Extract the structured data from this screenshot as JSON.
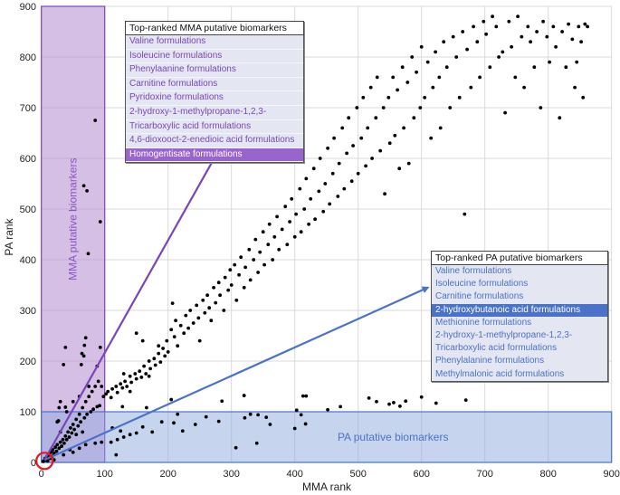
{
  "chart_data": {
    "type": "scatter",
    "xlabel": "MMA rank",
    "ylabel": "PA rank",
    "xlim": [
      0,
      900
    ],
    "ylim": [
      0,
      900
    ],
    "xticks": [
      "0",
      "100",
      "200",
      "300",
      "400",
      "500",
      "600",
      "700",
      "800",
      "900"
    ],
    "yticks": [
      "0",
      "100",
      "200",
      "300",
      "400",
      "500",
      "600",
      "700",
      "800",
      "900"
    ],
    "grid": true,
    "colors": {
      "points": "#000000",
      "mma": "#7b45b8",
      "mma_fill": "#d6bfe6",
      "pa": "#4a72c8",
      "pa_fill": "#c5d3ec",
      "highlight_circle": "#e8161b"
    },
    "regions": [
      {
        "label": "MMA putative biomarkers",
        "x": [
          0,
          100
        ],
        "y": [
          0,
          900
        ]
      },
      {
        "label": "PA putative biomarkers",
        "x": [
          0,
          900
        ],
        "y": [
          0,
          100
        ]
      }
    ],
    "arrows": [
      {
        "color": "mma",
        "from": [
          5,
          5
        ],
        "to": [
          275,
          605
        ]
      },
      {
        "color": "pa",
        "from": [
          5,
          5
        ],
        "to": [
          610,
          345
        ]
      }
    ],
    "highlight_circle_at": [
      5,
      3
    ],
    "points": [
      [
        102,
        135
      ],
      [
        105,
        140
      ],
      [
        110,
        128
      ],
      [
        112,
        145
      ],
      [
        118,
        150
      ],
      [
        120,
        138
      ],
      [
        125,
        155
      ],
      [
        128,
        147
      ],
      [
        132,
        160
      ],
      [
        135,
        150
      ],
      [
        140,
        170
      ],
      [
        142,
        158
      ],
      [
        148,
        175
      ],
      [
        150,
        165
      ],
      [
        155,
        180
      ],
      [
        158,
        168
      ],
      [
        162,
        190
      ],
      [
        165,
        175
      ],
      [
        170,
        200
      ],
      [
        172,
        185
      ],
      [
        178,
        205
      ],
      [
        180,
        192
      ],
      [
        185,
        215
      ],
      [
        188,
        198
      ],
      [
        192,
        225
      ],
      [
        195,
        210
      ],
      [
        198,
        240
      ],
      [
        200,
        218
      ],
      [
        150,
        255
      ],
      [
        160,
        240
      ],
      [
        170,
        170
      ],
      [
        140,
        140
      ],
      [
        185,
        230
      ],
      [
        130,
        175
      ],
      [
        205,
        262
      ],
      [
        210,
        248
      ],
      [
        212,
        280
      ],
      [
        215,
        230
      ],
      [
        220,
        270
      ],
      [
        225,
        255
      ],
      [
        228,
        290
      ],
      [
        232,
        265
      ],
      [
        235,
        300
      ],
      [
        240,
        275
      ],
      [
        245,
        310
      ],
      [
        248,
        285
      ],
      [
        250,
        240
      ],
      [
        255,
        320
      ],
      [
        258,
        295
      ],
      [
        262,
        330
      ],
      [
        265,
        305
      ],
      [
        268,
        280
      ],
      [
        272,
        345
      ],
      [
        275,
        315
      ],
      [
        280,
        355
      ],
      [
        282,
        330
      ],
      [
        288,
        300
      ],
      [
        290,
        365
      ],
      [
        295,
        340
      ],
      [
        298,
        380
      ],
      [
        300,
        350
      ],
      [
        305,
        390
      ],
      [
        308,
        320
      ],
      [
        312,
        370
      ],
      [
        315,
        405
      ],
      [
        320,
        345
      ],
      [
        322,
        385
      ],
      [
        328,
        420
      ],
      [
        330,
        360
      ],
      [
        335,
        400
      ],
      [
        338,
        440
      ],
      [
        342,
        375
      ],
      [
        345,
        415
      ],
      [
        350,
        455
      ],
      [
        352,
        390
      ],
      [
        358,
        430
      ],
      [
        360,
        470
      ],
      [
        365,
        400
      ],
      [
        368,
        445
      ],
      [
        372,
        485
      ],
      [
        375,
        420
      ],
      [
        380,
        460
      ],
      [
        385,
        505
      ],
      [
        388,
        430
      ],
      [
        392,
        475
      ],
      [
        395,
        520
      ],
      [
        400,
        445
      ],
      [
        402,
        490
      ],
      [
        408,
        540
      ],
      [
        410,
        455
      ],
      [
        415,
        500
      ],
      [
        418,
        560
      ],
      [
        422,
        470
      ],
      [
        425,
        520
      ],
      [
        430,
        580
      ],
      [
        432,
        480
      ],
      [
        438,
        535
      ],
      [
        440,
        600
      ],
      [
        445,
        495
      ],
      [
        448,
        550
      ],
      [
        452,
        620
      ],
      [
        455,
        510
      ],
      [
        460,
        570
      ],
      [
        462,
        640
      ],
      [
        468,
        525
      ],
      [
        470,
        590
      ],
      [
        475,
        660
      ],
      [
        478,
        540
      ],
      [
        482,
        610
      ],
      [
        485,
        680
      ],
      [
        490,
        555
      ],
      [
        492,
        625
      ],
      [
        498,
        700
      ],
      [
        500,
        570
      ],
      [
        505,
        640
      ],
      [
        508,
        720
      ],
      [
        512,
        585
      ],
      [
        515,
        660
      ],
      [
        520,
        740
      ],
      [
        522,
        600
      ],
      [
        528,
        680
      ],
      [
        530,
        760
      ],
      [
        535,
        615
      ],
      [
        540,
        700
      ],
      [
        542,
        530
      ],
      [
        548,
        720
      ],
      [
        550,
        630
      ],
      [
        555,
        760
      ],
      [
        558,
        645
      ],
      [
        562,
        735
      ],
      [
        565,
        580
      ],
      [
        570,
        780
      ],
      [
        572,
        660
      ],
      [
        578,
        750
      ],
      [
        580,
        590
      ],
      [
        585,
        800
      ],
      [
        588,
        680
      ],
      [
        592,
        770
      ],
      [
        598,
        700
      ],
      [
        600,
        820
      ],
      [
        605,
        720
      ],
      [
        610,
        790
      ],
      [
        615,
        640
      ],
      [
        618,
        740
      ],
      [
        622,
        810
      ],
      [
        628,
        760
      ],
      [
        630,
        660
      ],
      [
        635,
        830
      ],
      [
        640,
        780
      ],
      [
        645,
        700
      ],
      [
        650,
        840
      ],
      [
        655,
        800
      ],
      [
        660,
        720
      ],
      [
        665,
        850
      ],
      [
        668,
        490
      ],
      [
        672,
        815
      ],
      [
        678,
        740
      ],
      [
        682,
        860
      ],
      [
        688,
        830
      ],
      [
        692,
        760
      ],
      [
        698,
        870
      ],
      [
        702,
        845
      ],
      [
        708,
        780
      ],
      [
        712,
        880
      ],
      [
        718,
        860
      ],
      [
        722,
        800
      ],
      [
        728,
        810
      ],
      [
        732,
        690
      ],
      [
        738,
        870
      ],
      [
        742,
        820
      ],
      [
        748,
        760
      ],
      [
        752,
        880
      ],
      [
        758,
        840
      ],
      [
        762,
        740
      ],
      [
        768,
        860
      ],
      [
        772,
        830
      ],
      [
        778,
        780
      ],
      [
        782,
        850
      ],
      [
        788,
        700
      ],
      [
        792,
        870
      ],
      [
        798,
        840
      ],
      [
        802,
        790
      ],
      [
        808,
        860
      ],
      [
        812,
        820
      ],
      [
        818,
        680
      ],
      [
        822,
        850
      ],
      [
        828,
        780
      ],
      [
        832,
        865
      ],
      [
        838,
        835
      ],
      [
        842,
        740
      ],
      [
        848,
        860
      ],
      [
        852,
        830
      ],
      [
        858,
        865
      ],
      [
        862,
        860
      ],
      [
        855,
        720
      ],
      [
        845,
        790
      ],
      [
        3,
        2
      ],
      [
        5,
        4
      ],
      [
        6,
        8
      ],
      [
        8,
        5
      ],
      [
        9,
        12
      ],
      [
        10,
        3
      ],
      [
        12,
        15
      ],
      [
        14,
        8
      ],
      [
        15,
        20
      ],
      [
        17,
        12
      ],
      [
        18,
        25
      ],
      [
        20,
        18
      ],
      [
        22,
        30
      ],
      [
        24,
        22
      ],
      [
        25,
        35
      ],
      [
        28,
        28
      ],
      [
        30,
        40
      ],
      [
        32,
        32
      ],
      [
        34,
        45
      ],
      [
        36,
        38
      ],
      [
        38,
        52
      ],
      [
        40,
        45
      ],
      [
        42,
        60
      ],
      [
        44,
        50
      ],
      [
        46,
        68
      ],
      [
        48,
        58
      ],
      [
        50,
        75
      ],
      [
        52,
        65
      ],
      [
        55,
        85
      ],
      [
        58,
        72
      ],
      [
        60,
        95
      ],
      [
        62,
        80
      ],
      [
        65,
        108
      ],
      [
        68,
        88
      ],
      [
        70,
        120
      ],
      [
        72,
        95
      ],
      [
        75,
        130
      ],
      [
        78,
        100
      ],
      [
        80,
        140
      ],
      [
        82,
        105
      ],
      [
        85,
        150
      ],
      [
        88,
        110
      ],
      [
        90,
        160
      ],
      [
        92,
        112
      ],
      [
        95,
        150
      ],
      [
        98,
        130
      ],
      [
        50,
        20
      ],
      [
        60,
        28
      ],
      [
        70,
        35
      ],
      [
        85,
        38
      ],
      [
        95,
        40
      ],
      [
        20,
        5
      ],
      [
        35,
        15
      ],
      [
        45,
        25
      ],
      [
        55,
        55
      ],
      [
        65,
        60
      ],
      [
        30,
        60
      ],
      [
        40,
        100
      ],
      [
        25,
        80
      ],
      [
        60,
        130
      ],
      [
        50,
        120
      ],
      [
        75,
        150
      ],
      [
        85,
        675
      ],
      [
        67,
        546
      ],
      [
        72,
        536
      ],
      [
        93,
        475
      ],
      [
        74,
        412
      ],
      [
        38,
        227
      ],
      [
        70,
        246
      ],
      [
        68,
        231
      ],
      [
        64,
        215
      ],
      [
        67,
        210
      ],
      [
        35,
        193
      ],
      [
        63,
        193
      ],
      [
        93,
        227
      ],
      [
        88,
        190
      ],
      [
        30,
        120
      ],
      [
        28,
        108
      ],
      [
        27,
        82
      ],
      [
        38,
        109
      ],
      [
        110,
        40
      ],
      [
        120,
        45
      ],
      [
        130,
        50
      ],
      [
        140,
        55
      ],
      [
        160,
        70
      ],
      [
        175,
        60
      ],
      [
        190,
        80
      ],
      [
        215,
        95
      ],
      [
        118,
        15
      ],
      [
        128,
        110
      ],
      [
        166,
        108
      ],
      [
        205,
        124
      ],
      [
        209,
        78
      ],
      [
        207,
        314
      ],
      [
        112,
        68
      ],
      [
        125,
        62
      ],
      [
        150,
        58
      ],
      [
        223,
        62
      ],
      [
        243,
        75
      ],
      [
        260,
        90
      ],
      [
        280,
        81
      ],
      [
        285,
        121
      ],
      [
        307,
        29
      ],
      [
        320,
        132
      ],
      [
        321,
        88
      ],
      [
        330,
        95
      ],
      [
        340,
        38
      ],
      [
        342,
        94
      ],
      [
        355,
        89
      ],
      [
        361,
        75
      ],
      [
        400,
        67
      ],
      [
        403,
        103
      ],
      [
        410,
        94
      ],
      [
        413,
        131
      ],
      [
        418,
        131
      ],
      [
        417,
        76
      ],
      [
        452,
        104
      ],
      [
        472,
        110
      ],
      [
        517,
        127
      ],
      [
        529,
        120
      ],
      [
        549,
        115
      ],
      [
        556,
        118
      ],
      [
        566,
        111
      ],
      [
        575,
        121
      ],
      [
        600,
        129
      ],
      [
        623,
        117
      ],
      [
        670,
        123
      ]
    ]
  },
  "mma_legend": {
    "title": "Top-ranked MMA putative biomarkers",
    "items": [
      "Valine formulations",
      "Isoleucine formulations",
      "Phenylaanine formulations",
      "Carnitine formulations",
      "Pyridoxine formulations",
      "2-hydroxy-1-methylpropane-1,2,3-",
      "Tricarboxylic acid formulations",
      "4,6-dioxooct-2-enedioic acid formulations",
      "Homogentisate formulations"
    ],
    "highlighted": "Homogentisate formulations"
  },
  "pa_legend": {
    "title": "Top-ranked PA putative biomarkers",
    "items": [
      "Valine formulations",
      "Isoleucine formulations",
      "Carnitine formulations",
      "2-hydroxybutanoic acid formulations",
      "Methionine formulations",
      "2-hydroxy-1-methylpropane-1,2,3-",
      "Tricarboxylic acid formulations",
      "Phenylalanine formulations",
      "Methylmalonic acid formulations"
    ],
    "highlighted": "2-hydroxybutanoic acid formulations"
  }
}
